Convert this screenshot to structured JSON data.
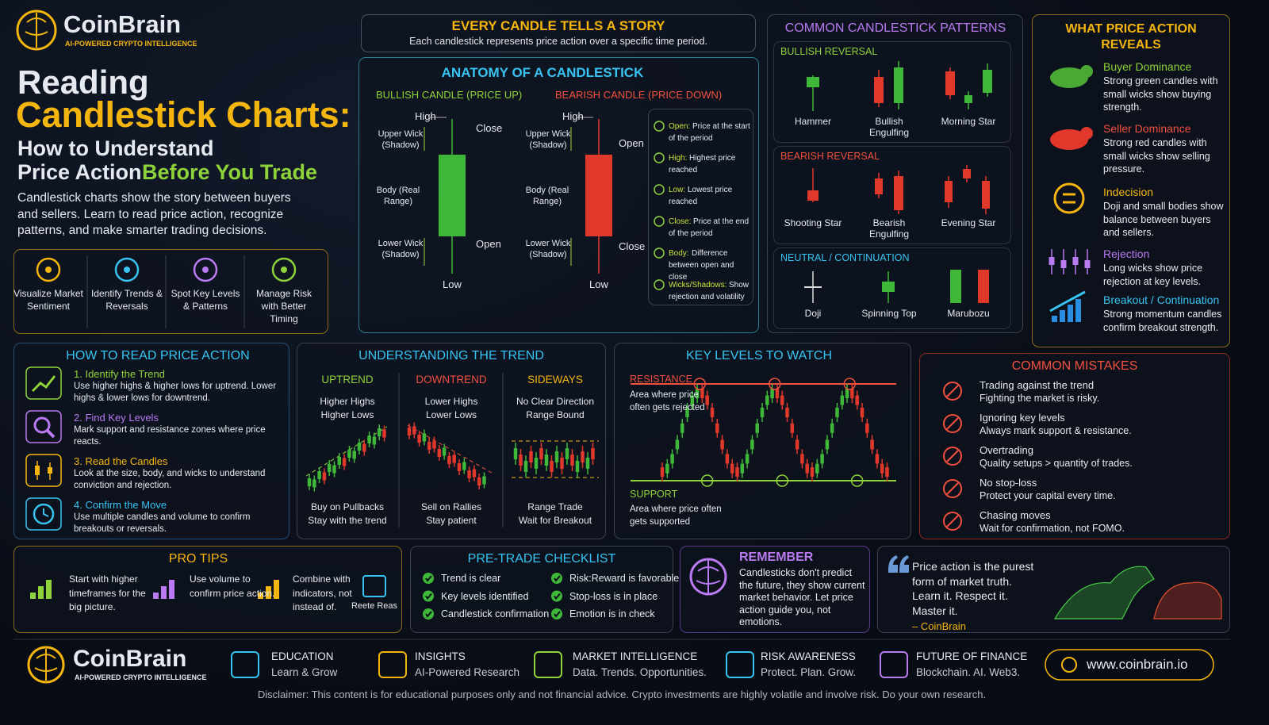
{
  "header": {
    "brand": "CoinBrain",
    "tagline": "AI-POWERED CRYPTO INTELLIGENCE",
    "title_line1": "Reading",
    "title_line2": "Candlestick Charts:",
    "subtitle_line1": "How to Understand",
    "subtitle_line2a": "Price Action",
    "subtitle_line2b": "Before You Trade",
    "intro": "Candlestick charts show the story between buyers and sellers. Learn to read price action,  recognize patterns, and make smarter trading decisions."
  },
  "benefits": [
    "Visualize Market Sentiment",
    "Identify Trends & Reversals",
    "Spot Key Levels & Patterns",
    "Manage Risk with Better Timing"
  ],
  "story": {
    "title": "EVERY CANDLE TELLS A STORY",
    "text": "Each candlestick represents price action over a specific time period."
  },
  "anatomy": {
    "title": "ANATOMY OF A CANDLESTICK",
    "bullish": {
      "title": "BULLISH CANDLE (PRICE UP)",
      "high": "High",
      "upper_wick": "Upper Wick (Shadow)",
      "body": "Body (Real Range)",
      "lower_wick": "Lower Wick (Shadow)",
      "low": "Low",
      "close": "Close",
      "open": "Open"
    },
    "bearish": {
      "title": "BEARISH CANDLE (PRICE DOWN)",
      "high": "High",
      "upper_wick": "Upper Wick (Shadow)",
      "body": "Body (Real Range)",
      "lower_wick": "Lower Wick (Shadow)",
      "low": "Low",
      "open": "Open",
      "close": "Close"
    },
    "legend": [
      {
        "term": "Open:",
        "text": "Price at the start of the period"
      },
      {
        "term": "High:",
        "text": "Highest price reached"
      },
      {
        "term": "Low:",
        "text": "Lowest price reached"
      },
      {
        "term": "Close:",
        "text": "Price at the end of the period"
      },
      {
        "term": "Body:",
        "text": "Difference between open and close"
      },
      {
        "term": "Wicks/Shadows:",
        "text": "Show rejection and volatility"
      }
    ]
  },
  "patterns": {
    "title": "COMMON CANDLESTICK PATTERNS",
    "groups": [
      {
        "title": "BULLISH REVERSAL",
        "items": [
          "Hammer",
          "Bullish Engulfing",
          "Morning Star"
        ]
      },
      {
        "title": "BEARISH REVERSAL",
        "items": [
          "Shooting Star",
          "Bearish Engulfing",
          "Evening Star"
        ]
      },
      {
        "title": "NEUTRAL / CONTINUATION",
        "items": [
          "Doji",
          "Spinning Top",
          "Marubozu"
        ]
      }
    ]
  },
  "reveals": {
    "title": "WHAT PRICE ACTION REVEALS",
    "items": [
      {
        "title": "Buyer Dominance",
        "text": "Strong green candles with small wicks show buying strength."
      },
      {
        "title": "Seller Dominance",
        "text": "Strong red candles with small wicks show selling pressure."
      },
      {
        "title": "Indecision",
        "text": "Doji and small bodies show balance between buyers and sellers."
      },
      {
        "title": "Rejection",
        "text": "Long wicks show price rejection at key levels."
      },
      {
        "title": "Breakout / Continuation",
        "text": "Strong momentum candles confirm breakout strength."
      }
    ]
  },
  "how_to": {
    "title": "HOW TO READ PRICE ACTION",
    "steps": [
      {
        "title": "1. Identify the Trend",
        "text": "Use higher highs & higher lows for uptrend. Lower highs & lower lows for downtrend."
      },
      {
        "title": "2. Find Key Levels",
        "text": "Mark support and resistance zones where price reacts."
      },
      {
        "title": "3. Read the Candles",
        "text": "Look at the size, body, and wicks to understand conviction and rejection."
      },
      {
        "title": "4. Confirm the Move",
        "text": "Use multiple candles and volume to confirm breakouts or reversals."
      }
    ]
  },
  "trend": {
    "title": "UNDERSTANDING THE TREND",
    "columns": [
      {
        "title": "UPTREND",
        "desc": [
          "Higher Highs",
          "Higher Lows"
        ],
        "tips": [
          "Buy on Pullbacks",
          "Stay with the trend"
        ]
      },
      {
        "title": "DOWNTREND",
        "desc": [
          "Lower Highs",
          "Lower Lows"
        ],
        "tips": [
          "Sell on Rallies",
          "Stay patient"
        ]
      },
      {
        "title": "SIDEWAYS",
        "desc": [
          "No Clear Direction",
          "Range Bound"
        ],
        "tips": [
          "Range Trade",
          "Wait for Breakout"
        ]
      }
    ]
  },
  "levels": {
    "title": "KEY LEVELS TO WATCH",
    "resistance": "RESISTANCE",
    "resistance_text": "Area where price often gets rejected",
    "support": "SUPPORT",
    "support_text": "Area where price often gets supported"
  },
  "mistakes": {
    "title": "COMMON MISTAKES",
    "items": [
      {
        "title": "Trading against the trend",
        "text": "Fighting the market is risky."
      },
      {
        "title": "Ignoring key levels",
        "text": "Always mark support & resistance."
      },
      {
        "title": "Overtrading",
        "text": "Quality setups > quantity of trades."
      },
      {
        "title": "No stop-loss",
        "text": "Protect your capital every time."
      },
      {
        "title": "Chasing moves",
        "text": "Wait for confirmation, not FOMO."
      }
    ]
  },
  "pro_tips": {
    "title": "PRO TIPS",
    "items": [
      "Start with higher timeframes for the big picture.",
      "Use volume to confirm price action.",
      "Combine with indicators, not instead of."
    ],
    "extra": "Reete Reas"
  },
  "checklist": {
    "title": "PRE-TRADE CHECKLIST",
    "items": [
      "Trend is clear",
      "Key levels identified",
      "Candlestick confirmation",
      "Risk:Reward is favorable",
      "Stop-loss is in place",
      "Emotion is in check"
    ]
  },
  "remember": {
    "title": "REMEMBER",
    "text": "Candlesticks don't predict the future, they show current market behavior. Let price action guide you, not emotions."
  },
  "quote": {
    "text": "Price action is the purest form of market truth. Learn it. Respect it. Master it.",
    "author": "– CoinBrain"
  },
  "footer": {
    "brand": "CoinBrain",
    "tagline": "AI-POWERED CRYPTO INTELLIGENCE",
    "pillars": [
      {
        "title": "EDUCATION",
        "text": "Learn & Grow"
      },
      {
        "title": "INSIGHTS",
        "text": "AI-Powered Research"
      },
      {
        "title": "MARKET INTELLIGENCE",
        "text": "Data. Trends. Opportunities."
      },
      {
        "title": "RISK AWARENESS",
        "text": "Protect. Plan. Grow."
      },
      {
        "title": "FUTURE OF FINANCE",
        "text": "Blockchain. AI. Web3."
      }
    ],
    "url": "www.coinbrain.io",
    "disclaimer": "Disclaimer: This content is for educational purposes only and not financial advice. Crypto investments are highly volatile and involve risk. Do your own research."
  }
}
